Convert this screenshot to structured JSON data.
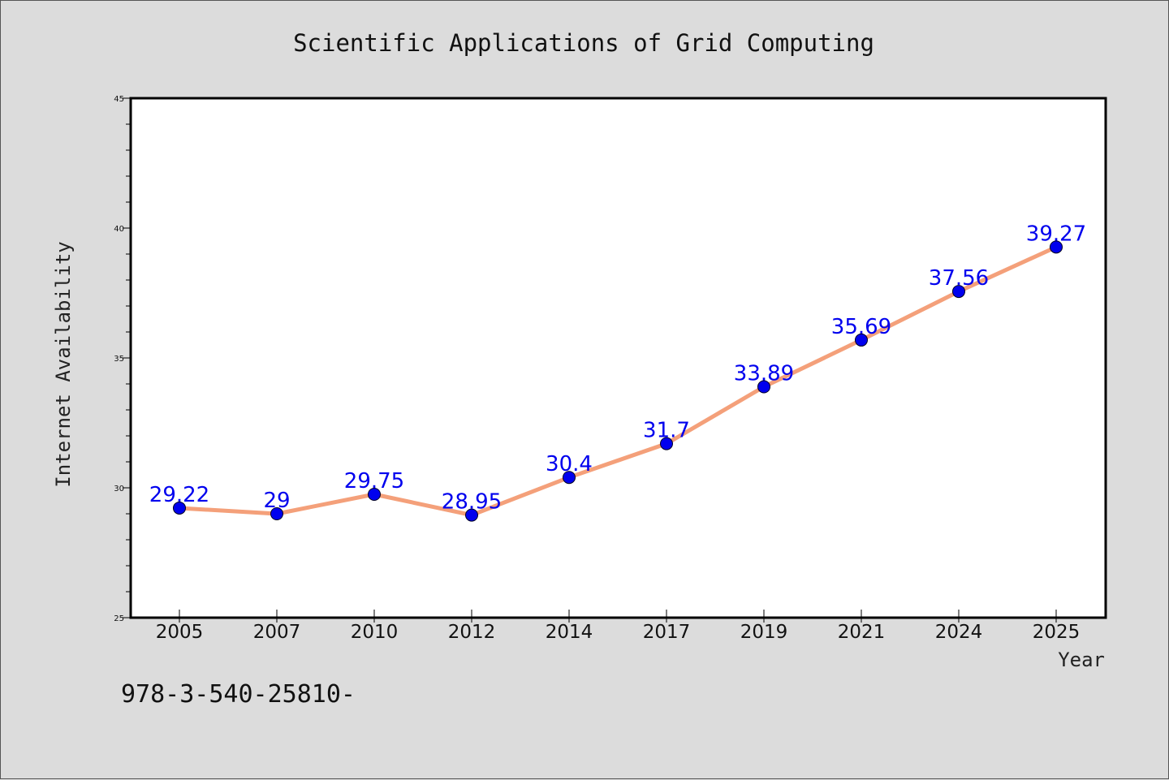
{
  "chart_data": {
    "type": "line",
    "title": "Scientific Applications of Grid Computing",
    "xlabel": "Year",
    "ylabel": "Internet Availability",
    "categories": [
      "2005",
      "2007",
      "2010",
      "2012",
      "2014",
      "2017",
      "2019",
      "2021",
      "2024",
      "2025"
    ],
    "values": [
      29.22,
      29,
      29.75,
      28.95,
      30.4,
      31.7,
      33.89,
      35.69,
      37.56,
      39.27
    ],
    "data_labels": [
      "29.22",
      "29",
      "29.75",
      "28.95",
      "30.4",
      "31.7",
      "33.89",
      "35.69",
      "37.56",
      "39.27"
    ],
    "ylim": [
      25,
      45
    ],
    "yticks": [
      25,
      30,
      35,
      40,
      45
    ],
    "grid": false,
    "legend": "none",
    "colors": {
      "line": "#f4a07a",
      "marker": "#0000ee",
      "label": "#0000ee",
      "background": "#dcdcdc",
      "plot_area": "#ffffff"
    }
  },
  "footnote": "978-3-540-25810-"
}
